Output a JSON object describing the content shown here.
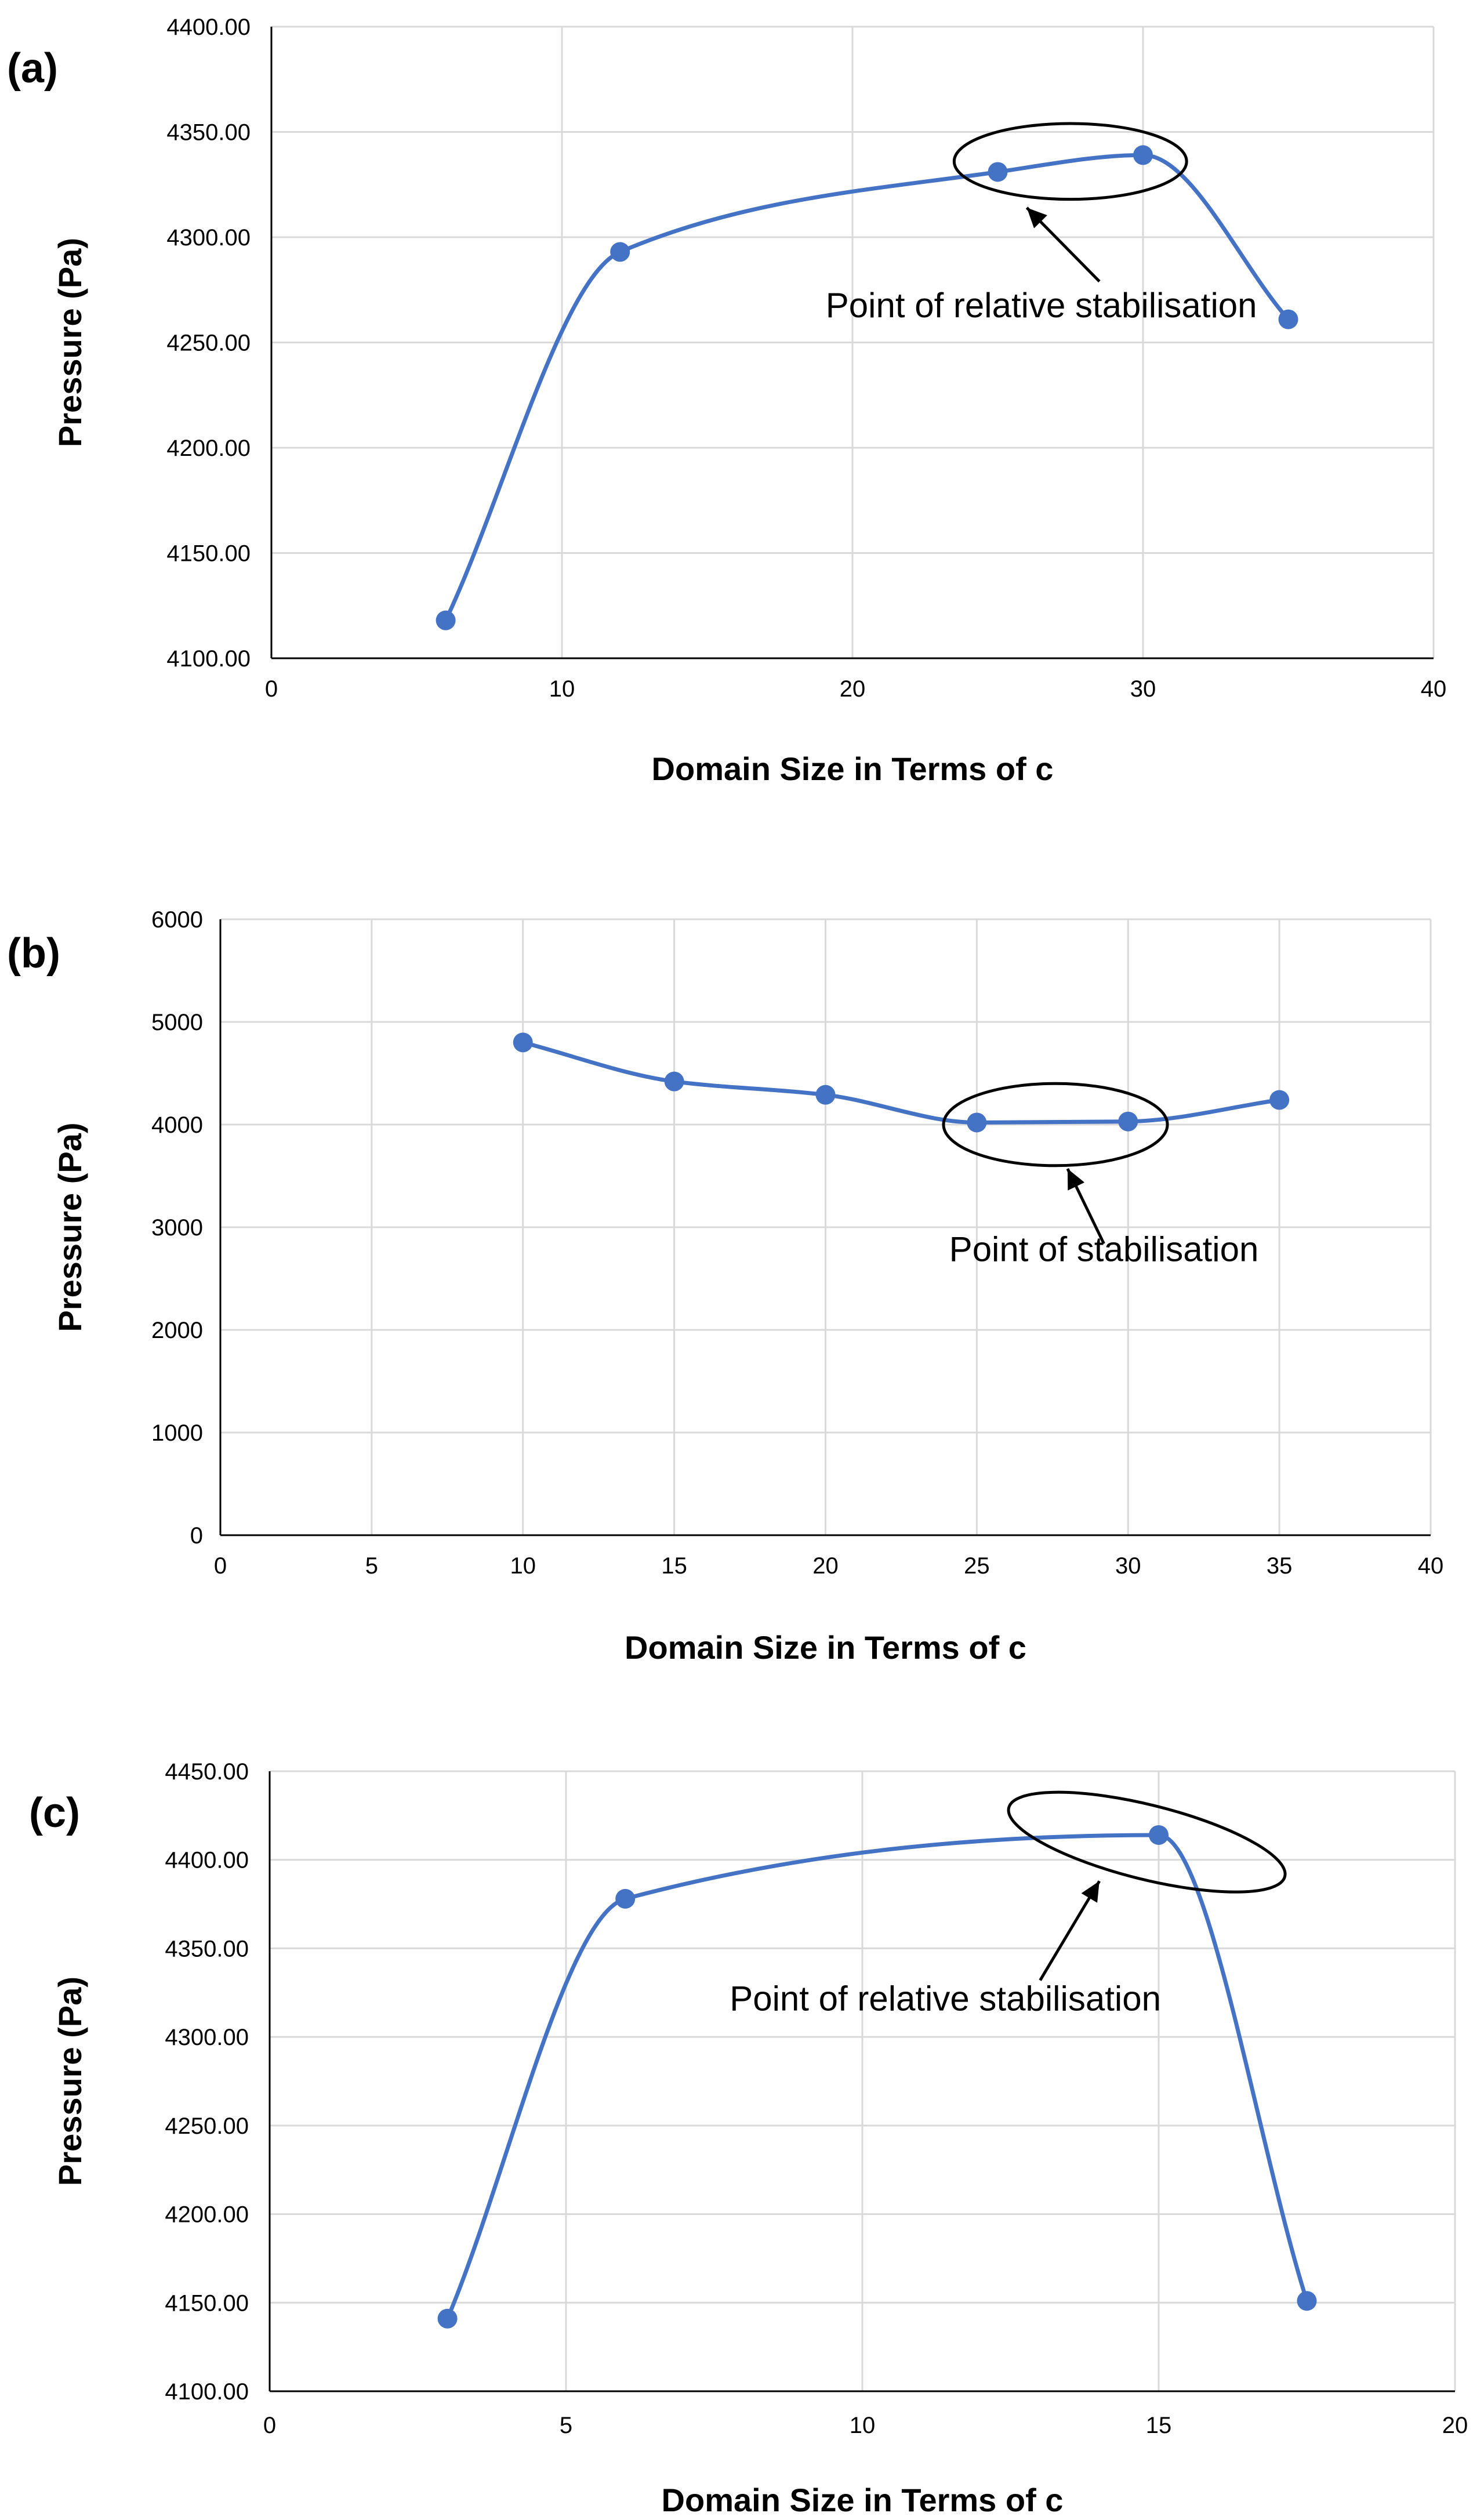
{
  "chart_data": [
    {
      "type": "line",
      "panel_label": "(a)",
      "xlabel": "Domain Size in Terms of c",
      "ylabel": "Pressure (Pa)",
      "xlim": [
        0,
        40
      ],
      "ylim": [
        4100,
        4400
      ],
      "xticks": [
        0,
        10,
        20,
        30,
        40
      ],
      "xtick_labels": [
        "0",
        "10",
        "20",
        "30",
        "40"
      ],
      "yticks": [
        4100,
        4150,
        4200,
        4250,
        4300,
        4350,
        4400
      ],
      "ytick_labels": [
        "4100.00",
        "4150.00",
        "4200.00",
        "4250.00",
        "4300.00",
        "4350.00",
        "4400.00"
      ],
      "grid": true,
      "smooth": true,
      "color": "#4472c4",
      "series": [
        {
          "x": [
            6,
            12,
            25,
            30,
            35
          ],
          "y": [
            4118,
            4293,
            4331,
            4339,
            4261
          ]
        }
      ],
      "annotation": {
        "text": "Point of relative stabilisation",
        "ellipse_center": [
          27.5,
          4336
        ],
        "ellipse_radii": [
          4,
          18
        ],
        "arrow_tip": [
          26,
          4314
        ],
        "arrow_tail": [
          28.5,
          4279
        ],
        "text_anchor": [
          26.5,
          4262
        ]
      }
    },
    {
      "type": "line",
      "panel_label": "(b)",
      "xlabel": "Domain Size in Terms of c",
      "ylabel": "Pressure (Pa)",
      "xlim": [
        0,
        40
      ],
      "ylim": [
        0,
        6000
      ],
      "xticks": [
        0,
        5,
        10,
        15,
        20,
        25,
        30,
        35,
        40
      ],
      "xtick_labels": [
        "0",
        "5",
        "10",
        "15",
        "20",
        "25",
        "30",
        "35",
        "40"
      ],
      "yticks": [
        0,
        1000,
        2000,
        3000,
        4000,
        5000,
        6000
      ],
      "ytick_labels": [
        "0",
        "1000",
        "2000",
        "3000",
        "4000",
        "5000",
        "6000"
      ],
      "grid": true,
      "smooth": true,
      "color": "#4472c4",
      "series": [
        {
          "x": [
            10,
            15,
            20,
            25,
            30,
            35
          ],
          "y": [
            4800,
            4420,
            4290,
            4020,
            4030,
            4240
          ]
        }
      ],
      "annotation": {
        "text": "Point of stabilisation",
        "ellipse_center": [
          27.6,
          4000
        ],
        "ellipse_radii": [
          3.7,
          400
        ],
        "arrow_tip": [
          28,
          3570
        ],
        "arrow_tail": [
          29.2,
          2840
        ],
        "text_anchor": [
          29.2,
          2670
        ]
      }
    },
    {
      "type": "line",
      "panel_label": "(c)",
      "xlabel": "Domain Size in Terms of c",
      "ylabel": "Pressure (Pa)",
      "xlim": [
        0,
        20
      ],
      "ylim": [
        4100,
        4450
      ],
      "xticks": [
        0,
        5,
        10,
        15,
        20
      ],
      "xtick_labels": [
        "0",
        "5",
        "10",
        "15",
        "20"
      ],
      "yticks": [
        4100,
        4150,
        4200,
        4250,
        4300,
        4350,
        4400,
        4450
      ],
      "ytick_labels": [
        "4100.00",
        "4150.00",
        "4200.00",
        "4250.00",
        "4300.00",
        "4350.00",
        "4400.00",
        "4450.00"
      ],
      "grid": true,
      "smooth": true,
      "color": "#4472c4",
      "series": [
        {
          "x": [
            3,
            6,
            15,
            17.5
          ],
          "y": [
            4141,
            4378,
            4414,
            4151
          ]
        }
      ],
      "annotation": {
        "text": "Point of relative stabilisation",
        "ellipse_center": [
          14.8,
          4410
        ],
        "ellipse_radii": [
          2.4,
          21
        ],
        "arrow_tip": [
          14,
          4388
        ],
        "arrow_tail": [
          13,
          4332
        ],
        "text_anchor": [
          11.4,
          4315
        ]
      }
    }
  ]
}
